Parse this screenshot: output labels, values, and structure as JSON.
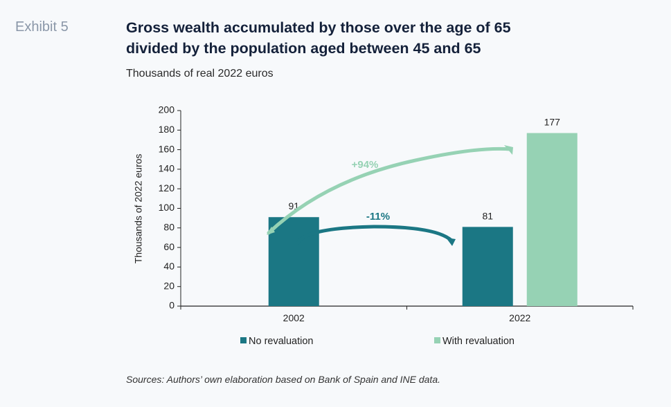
{
  "header": {
    "exhibit_label": "Exhibit 5",
    "title_line1": "Gross wealth accumulated by those over the age of 65",
    "title_line2": "divided by the population aged between 45 and 65",
    "subtitle": "Thousands of real 2022 euros"
  },
  "sources": "Sources: Authors’ own elaboration based on Bank of Spain and INE data.",
  "colors": {
    "no_revaluation": "#1b7784",
    "with_revaluation": "#96d2b4",
    "axis": "#222222"
  },
  "chart_data": {
    "type": "bar",
    "title": "Gross wealth accumulated by those over the age of 65 divided by the population aged between 45 and 65",
    "subtitle": "Thousands of real 2022 euros",
    "xlabel": "",
    "ylabel": "Thousands of 2022 euros",
    "ylim": [
      0,
      200
    ],
    "yticks": [
      0,
      20,
      40,
      60,
      80,
      100,
      120,
      140,
      160,
      180,
      200
    ],
    "categories": [
      "2002",
      "2022"
    ],
    "series": [
      {
        "name": "No revaluation",
        "values": [
          91,
          81
        ],
        "labels": [
          "91",
          "81"
        ]
      },
      {
        "name": "With revaluation",
        "values": [
          null,
          177
        ],
        "labels": [
          "",
          "177"
        ]
      }
    ],
    "legend": {
      "position": "bottom",
      "entries": [
        "No revaluation",
        "With revaluation"
      ]
    },
    "annotations": [
      {
        "text": "+94%",
        "from": "2002 No revaluation",
        "to": "2022 With revaluation",
        "series_color": "with_revaluation"
      },
      {
        "text": "-11%",
        "from": "2002 No revaluation",
        "to": "2022 No revaluation",
        "series_color": "no_revaluation"
      }
    ],
    "grid": false
  }
}
